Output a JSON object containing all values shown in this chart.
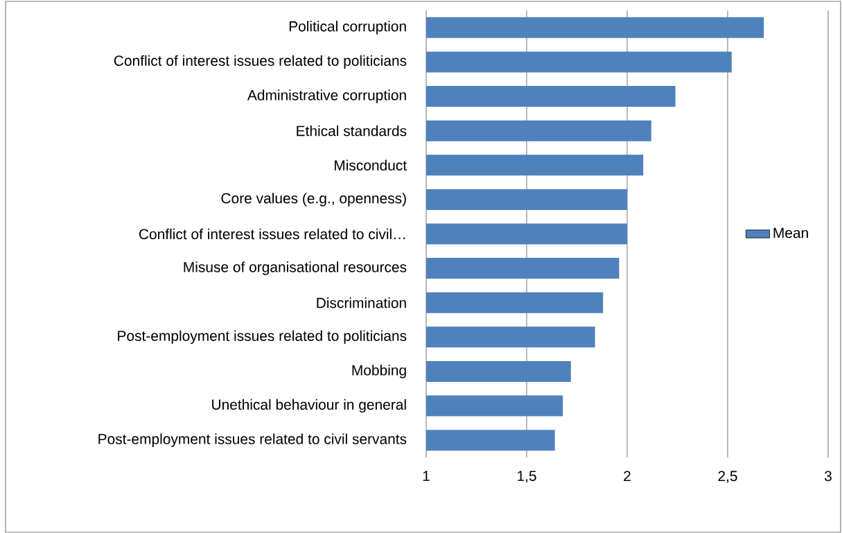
{
  "chart_data": {
    "type": "bar",
    "orientation": "horizontal",
    "categories": [
      "Political corruption",
      "Conflict of interest issues related to politicians",
      "Administrative corruption",
      "Ethical standards",
      "Misconduct",
      "Core values (e.g., openness)",
      "Conflict of interest issues related to civil…",
      "Misuse of organisational resources",
      "Discrimination",
      "Post-employment issues related to politicians",
      "Mobbing",
      "Unethical behaviour in general",
      "Post-employment issues related to civil servants"
    ],
    "series": [
      {
        "name": "Mean",
        "color": "#4f81bd",
        "values": [
          2.68,
          2.52,
          2.24,
          2.12,
          2.08,
          2.0,
          2.0,
          1.96,
          1.88,
          1.84,
          1.72,
          1.68,
          1.64
        ]
      }
    ],
    "xlim": [
      1,
      3
    ],
    "xticks": [
      1,
      {
        "value": 1.5,
        "label": "1,5"
      },
      2,
      {
        "value": 2.5,
        "label": "2,5"
      },
      3
    ],
    "grid": "x",
    "legend": "right"
  }
}
